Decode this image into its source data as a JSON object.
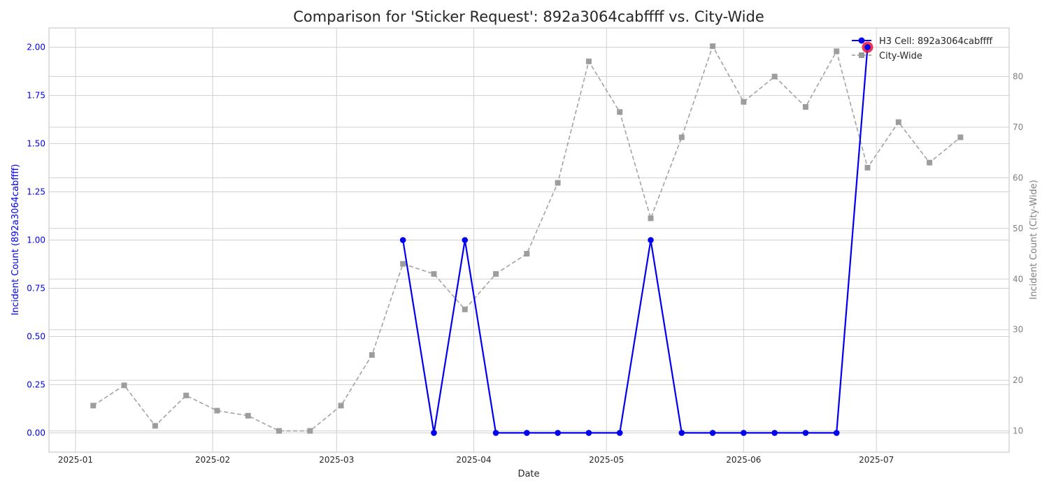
{
  "chart_data": {
    "type": "line",
    "title": "Comparison for 'Sticker Request': 892a3064cabffff vs. City-Wide",
    "xlabel": "Date",
    "ylabel_left": "Incident Count (892a3064cabffff)",
    "ylabel_right": "Incident Count (City-Wide)",
    "x_ticks": [
      "2025-01",
      "2025-02",
      "2025-03",
      "2025-04",
      "2025-05",
      "2025-06",
      "2025-07"
    ],
    "y_left_ticks": [
      "0.00",
      "0.25",
      "0.50",
      "0.75",
      "1.00",
      "1.25",
      "1.50",
      "1.75",
      "2.00"
    ],
    "y_right_ticks": [
      "10",
      "20",
      "30",
      "40",
      "50",
      "60",
      "70",
      "80"
    ],
    "ylim_left": [
      -0.1,
      2.1
    ],
    "ylim_right": [
      5.8,
      89.6
    ],
    "xlim": [
      "2024-12-26",
      "2025-07-31"
    ],
    "grid": true,
    "legend_position": "top-right",
    "colors": {
      "h3": "#0000ee",
      "city": "#999999",
      "highlight": "#ee1133",
      "left_axis_text": "#0000ee",
      "right_axis_text": "#808080"
    },
    "series": [
      {
        "name": "H3 Cell: 892a3064cabffff",
        "axis": "left",
        "x": [
          "2025-03-16",
          "2025-03-23",
          "2025-03-30",
          "2025-04-06",
          "2025-04-13",
          "2025-04-20",
          "2025-04-27",
          "2025-05-04",
          "2025-05-11",
          "2025-05-18",
          "2025-05-25",
          "2025-06-01",
          "2025-06-08",
          "2025-06-15",
          "2025-06-22",
          "2025-06-29"
        ],
        "values": [
          1,
          0,
          1,
          0,
          0,
          0,
          0,
          0,
          1,
          0,
          0,
          0,
          0,
          0,
          0,
          2
        ]
      },
      {
        "name": "City-Wide",
        "axis": "right",
        "x": [
          "2025-01-05",
          "2025-01-12",
          "2025-01-19",
          "2025-01-26",
          "2025-02-02",
          "2025-02-09",
          "2025-02-16",
          "2025-02-23",
          "2025-03-02",
          "2025-03-09",
          "2025-03-16",
          "2025-03-23",
          "2025-03-30",
          "2025-04-06",
          "2025-04-13",
          "2025-04-20",
          "2025-04-27",
          "2025-05-04",
          "2025-05-11",
          "2025-05-18",
          "2025-05-25",
          "2025-06-01",
          "2025-06-08",
          "2025-06-15",
          "2025-06-22",
          "2025-06-29",
          "2025-07-06",
          "2025-07-13",
          "2025-07-20"
        ],
        "values": [
          15,
          19,
          11,
          17,
          14,
          13,
          10,
          10,
          15,
          25,
          43,
          41,
          34,
          41,
          45,
          59,
          83,
          73,
          52,
          68,
          86,
          75,
          80,
          74,
          85,
          62,
          71,
          63,
          68
        ]
      }
    ],
    "highlight_point": {
      "series": "H3 Cell: 892a3064cabffff",
      "x": "2025-06-29",
      "value": 2
    }
  }
}
